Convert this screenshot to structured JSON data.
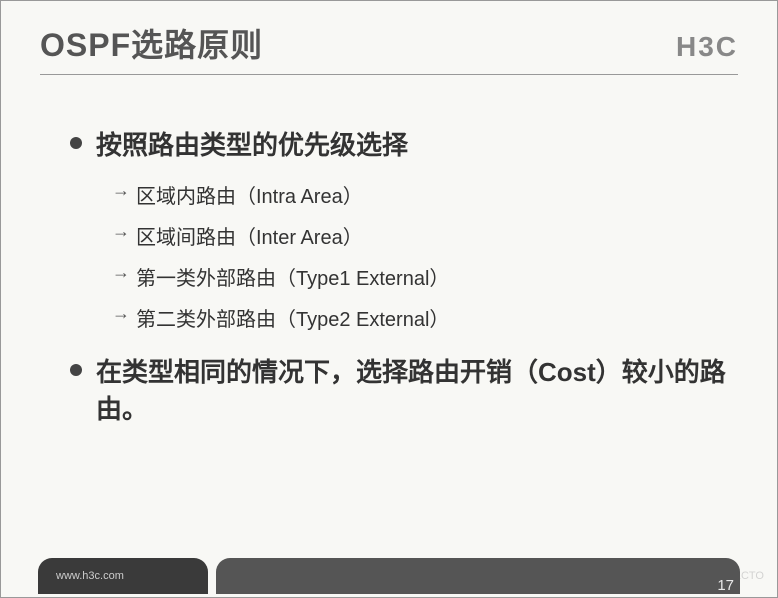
{
  "header": {
    "title": "OSPF选路原则",
    "logo": "H3C"
  },
  "bullets": [
    {
      "text": "按照路由类型的优先级选择",
      "subs": [
        "区域内路由（Intra Area）",
        "区域间路由（Inter Area）",
        "第一类外部路由（Type1 External）",
        "第二类外部路由（Type2 External）"
      ]
    },
    {
      "text": "在类型相同的情况下，选择路由开销（Cost）较小的路由。",
      "subs": []
    }
  ],
  "footer": {
    "url": "www.h3c.com",
    "page": "17",
    "watermark": "©51CTO"
  },
  "styling": {
    "title_fontsize": 32,
    "title_color": "#555555",
    "logo_color": "#888888",
    "bullet_main_fontsize": 26,
    "bullet_main_color": "#333333",
    "bullet_dot_color": "#444444",
    "sub_fontsize": 20,
    "sub_color": "#333333",
    "arrow_color": "#555555",
    "divider_color": "#999999",
    "background_color": "#f8f8f5",
    "footer_left_bg": "#3a3a3a",
    "footer_right_bg": "#555555",
    "footer_url_color": "#cccccc",
    "page_num_color": "#e8e8e8"
  }
}
